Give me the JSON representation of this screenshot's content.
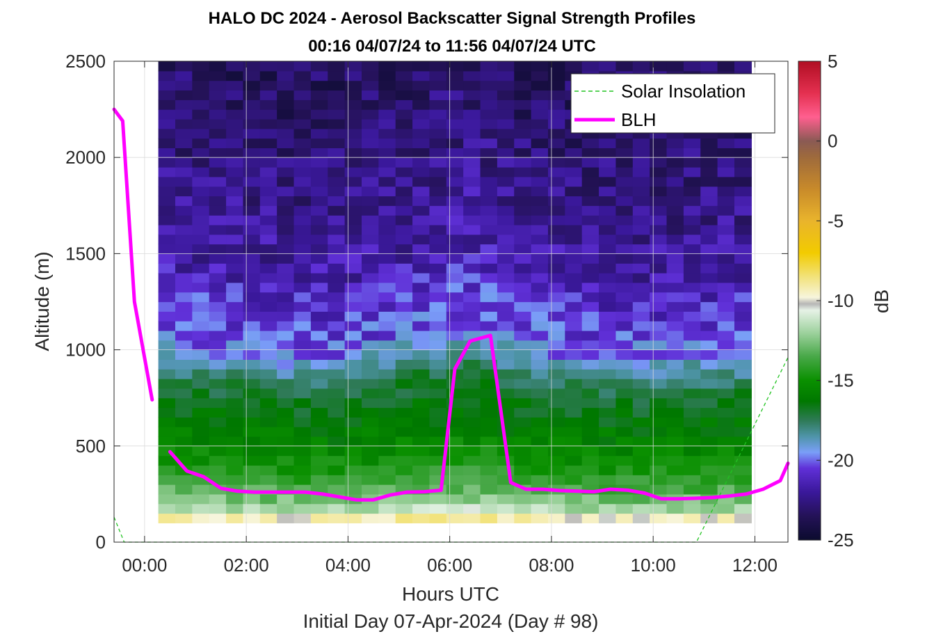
{
  "chart_data": {
    "type": "heatmap",
    "title": "HALO DC 2024 - Aerosol Backscatter Signal Strength Profiles",
    "subtitle": "00:16 04/07/24 to 11:56 04/07/24  UTC",
    "xlabel": "Hours UTC",
    "ylabel": "Altitude (m)",
    "footer": "Initial Day 07-Apr-2024 (Day # 98)",
    "colorbar_label": "dB",
    "xlim": [
      -0.6,
      12.65
    ],
    "ylim": [
      0,
      2500
    ],
    "x_ticks": [
      0,
      2,
      4,
      6,
      8,
      10,
      12
    ],
    "x_tick_labels": [
      "00:00",
      "02:00",
      "04:00",
      "06:00",
      "08:00",
      "10:00",
      "12:00"
    ],
    "y_ticks": [
      0,
      500,
      1000,
      1500,
      2000,
      2500
    ],
    "y_tick_labels": [
      "0",
      "500",
      "1000",
      "1500",
      "2000",
      "2500"
    ],
    "colorbar_ticks": [
      5,
      0,
      -5,
      -10,
      -15,
      -20,
      -25
    ],
    "colorbar_tick_labels": [
      "5",
      "0",
      "-5",
      "-10",
      "-15",
      "-20",
      "-25"
    ],
    "clim": [
      -25,
      5
    ],
    "grid": true,
    "legend_position": "top-right",
    "heatmap": {
      "x_start": 0.27,
      "x_end": 11.93,
      "y_start": 100,
      "y_end": 2500,
      "x_bins": 35,
      "y_bins": 48,
      "layer_profile_db": [
        {
          "alt": 100,
          "db": -7.5
        },
        {
          "alt": 150,
          "db": -10.5
        },
        {
          "alt": 200,
          "db": -12.2
        },
        {
          "alt": 280,
          "db": -13.3
        },
        {
          "alt": 400,
          "db": -14.6
        },
        {
          "alt": 550,
          "db": -15.8
        },
        {
          "alt": 700,
          "db": -16.4
        },
        {
          "alt": 850,
          "db": -17.2
        },
        {
          "alt": 950,
          "db": -18.5
        },
        {
          "alt": 1050,
          "db": -19.8
        },
        {
          "alt": 1150,
          "db": -20.3
        },
        {
          "alt": 1300,
          "db": -20.8
        },
        {
          "alt": 1500,
          "db": -21.6
        },
        {
          "alt": 1800,
          "db": -22.2
        },
        {
          "alt": 2100,
          "db": -22.7
        },
        {
          "alt": 2500,
          "db": -23.3
        }
      ],
      "boundary_layer_top_by_hour": [
        {
          "x": 0.3,
          "alt": 1000
        },
        {
          "x": 3.0,
          "alt": 920
        },
        {
          "x": 4.3,
          "alt": 940
        },
        {
          "x": 5.5,
          "alt": 1040
        },
        {
          "x": 6.5,
          "alt": 1080
        },
        {
          "x": 7.5,
          "alt": 960
        },
        {
          "x": 9.5,
          "alt": 900
        },
        {
          "x": 11.9,
          "alt": 940
        }
      ]
    },
    "series": [
      {
        "name": "Solar Insolation",
        "color": "#22c322",
        "style": "dashed",
        "x": [
          -0.6,
          -0.4,
          10.85,
          12.65
        ],
        "y": [
          130,
          0,
          0,
          960
        ]
      },
      {
        "name": "BLH",
        "color": "#ff00ff",
        "style": "solid",
        "segments": [
          {
            "x": [
              -0.6,
              -0.43,
              -0.2,
              0.15
            ],
            "y": [
              2250,
              2190,
              1250,
              740
            ]
          },
          {
            "x": [
              0.5,
              0.83,
              1.16,
              1.5,
              1.83,
              2.16,
              2.5,
              2.83,
              3.16,
              3.5,
              3.83,
              4.16,
              4.5,
              4.83,
              5.16,
              5.5,
              5.83,
              6.1,
              6.4,
              6.8,
              7.2,
              7.5,
              7.83,
              8.16,
              8.5,
              8.83,
              9.16,
              9.5,
              9.83,
              10.16,
              10.5,
              10.83,
              11.16,
              11.5,
              11.83,
              12.16,
              12.5,
              12.65
            ],
            "y": [
              470,
              370,
              340,
              280,
              265,
              260,
              260,
              260,
              260,
              250,
              235,
              220,
              220,
              245,
              260,
              262,
              270,
              900,
              1045,
              1075,
              310,
              275,
              275,
              268,
              265,
              262,
              275,
              270,
              255,
              225,
              225,
              228,
              232,
              240,
              250,
              275,
              320,
              410
            ]
          }
        ]
      }
    ],
    "colormap": [
      {
        "db": -25,
        "color": "#0b0b2e"
      },
      {
        "db": -23.5,
        "color": "#241257"
      },
      {
        "db": -22,
        "color": "#3a189a"
      },
      {
        "db": -20.5,
        "color": "#6030d8"
      },
      {
        "db": -19.5,
        "color": "#7a9ff8"
      },
      {
        "db": -18.5,
        "color": "#4e94a8"
      },
      {
        "db": -17.5,
        "color": "#2e7a56"
      },
      {
        "db": -16.3,
        "color": "#007800"
      },
      {
        "db": -15,
        "color": "#0a9000"
      },
      {
        "db": -13.5,
        "color": "#48a848"
      },
      {
        "db": -12,
        "color": "#9ed29e"
      },
      {
        "db": -10.6,
        "color": "#e6f2e6"
      },
      {
        "db": -10.2,
        "color": "#b6b6b6"
      },
      {
        "db": -9.8,
        "color": "#f7f5dc"
      },
      {
        "db": -8.5,
        "color": "#f2e27a"
      },
      {
        "db": -7,
        "color": "#f2cb00"
      },
      {
        "db": -5,
        "color": "#e9b42c"
      },
      {
        "db": -3,
        "color": "#c88a2a"
      },
      {
        "db": -1,
        "color": "#9e6a3c"
      },
      {
        "db": 0,
        "color": "#8a5a54"
      },
      {
        "db": 1.5,
        "color": "#ff5f8f"
      },
      {
        "db": 3,
        "color": "#e43050"
      },
      {
        "db": 5,
        "color": "#b00e22"
      }
    ],
    "legend": [
      {
        "label": "Solar Insolation",
        "style": "dashed",
        "color": "#22c322"
      },
      {
        "label": "BLH",
        "style": "solid",
        "color": "#ff00ff"
      }
    ]
  }
}
